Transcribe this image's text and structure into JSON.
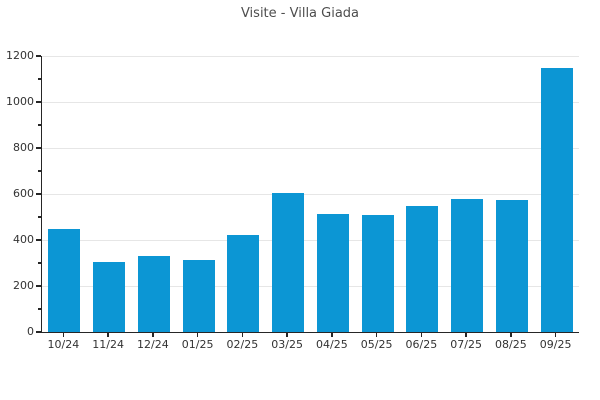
{
  "chart_data": {
    "type": "bar",
    "title": "Visite - Villa Giada",
    "categories": [
      "10/24",
      "11/24",
      "12/24",
      "01/25",
      "02/25",
      "03/25",
      "04/25",
      "05/25",
      "06/25",
      "07/25",
      "08/25",
      "09/25"
    ],
    "values": [
      450,
      305,
      330,
      315,
      420,
      605,
      515,
      510,
      550,
      580,
      575,
      1150
    ],
    "xlabel": "",
    "ylabel": "",
    "ylim": [
      0,
      1200
    ],
    "yticks": [
      0,
      200,
      400,
      600,
      800,
      1000,
      1200
    ],
    "ytick_minor_step": 100,
    "grid": true,
    "legend": "none",
    "colors": {
      "bar": "#0c96d4",
      "grid": "#e6e6e6",
      "axis": "#262626",
      "tick_label": "#333333",
      "title": "#4d4d4d"
    }
  }
}
